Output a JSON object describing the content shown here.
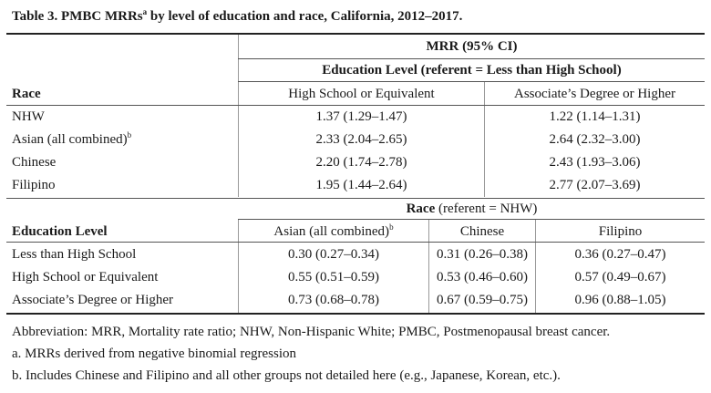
{
  "caption": {
    "prefix": "Table 3.  PMBC MRRs",
    "sup": "a",
    "suffix": " by level of education and race, California, 2012–2017."
  },
  "top": {
    "group_header": "MRR (95% CI)",
    "sub_header": "Education Level (referent = Less than High School)",
    "row_label_header": "Race",
    "columns": [
      "High School or Equivalent",
      "Associate’s Degree or Higher"
    ],
    "rows": [
      {
        "label": "NHW",
        "label_sup": "",
        "values": [
          "1.37 (1.29–1.47)",
          "1.22 (1.14–1.31)"
        ]
      },
      {
        "label": "Asian (all combined)",
        "label_sup": "b",
        "values": [
          "2.33 (2.04–2.65)",
          "2.64 (2.32–3.00)"
        ]
      },
      {
        "label": "Chinese",
        "label_sup": "",
        "values": [
          "2.20 (1.74–2.78)",
          "2.43 (1.93–3.06)"
        ]
      },
      {
        "label": "Filipino",
        "label_sup": "",
        "values": [
          "1.95 (1.44–2.64)",
          "2.77 (2.07–3.69)"
        ]
      }
    ]
  },
  "bottom": {
    "sub_header_bold": "Race",
    "sub_header_rest": " (referent = NHW)",
    "row_label_header": "Education Level",
    "columns": [
      {
        "label": "Asian (all combined)",
        "sup": "b"
      },
      {
        "label": "Chinese",
        "sup": ""
      },
      {
        "label": "Filipino",
        "sup": ""
      }
    ],
    "rows": [
      {
        "label": "Less than High School",
        "values": [
          "0.30 (0.27–0.34)",
          "0.31 (0.26–0.38)",
          "0.36 (0.27–0.47)"
        ]
      },
      {
        "label": "High School or Equivalent",
        "values": [
          "0.55 (0.51–0.59)",
          "0.53 (0.46–0.60)",
          "0.57 (0.49–0.67)"
        ]
      },
      {
        "label": "Associate’s Degree or Higher",
        "values": [
          "0.73 (0.68–0.78)",
          "0.67 (0.59–0.75)",
          "0.96 (0.88–1.05)"
        ]
      }
    ]
  },
  "footnotes": [
    "Abbreviation: MRR, Mortality rate ratio; NHW, Non-Hispanic White; PMBC, Postmenopausal breast cancer.",
    "a. MRRs derived from negative binomial regression",
    "b. Includes Chinese and Filipino and all other groups not detailed here (e.g., Japanese, Korean, etc.)."
  ]
}
